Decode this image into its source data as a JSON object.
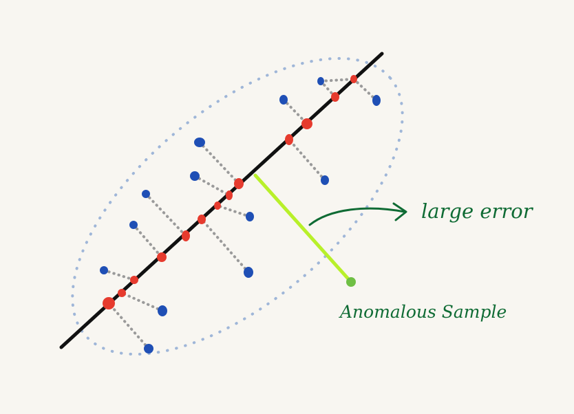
{
  "annotations": {
    "large_error": "large error",
    "anomalous_sample": "Anomalous Sample"
  },
  "colors": {
    "background": "#f8f6f1",
    "principal_axis": "#111111",
    "data_point": "#1f4fb5",
    "projection": "#e63b2e",
    "projection_line": "#9a9a9a",
    "ellipse": "#9fb6d8",
    "error_line": "#b8f02a",
    "anomaly_point": "#6fbf44",
    "annotation_text": "#0f6b34"
  }
}
